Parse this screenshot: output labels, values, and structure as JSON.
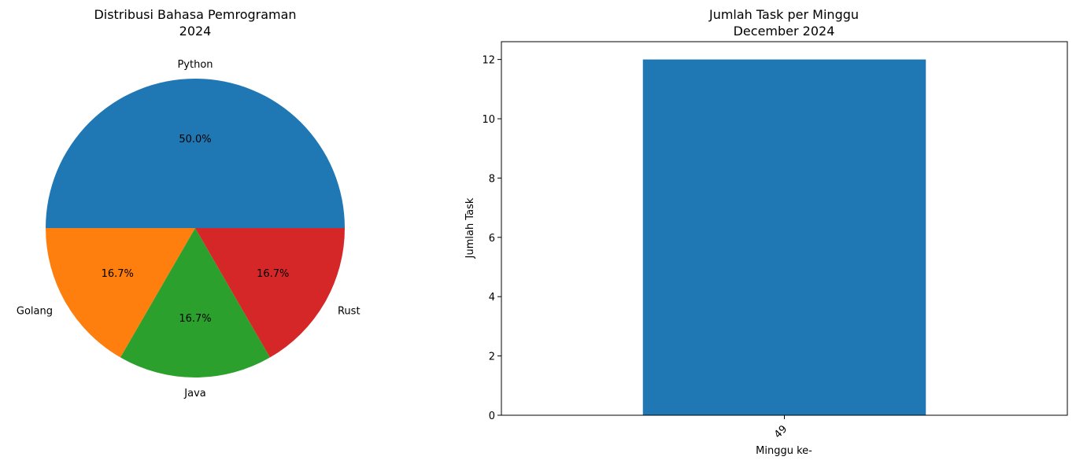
{
  "chart_data": [
    {
      "type": "pie",
      "title": "Distribusi Bahasa Pemrograman",
      "subtitle": "2024",
      "categories": [
        "Python",
        "Golang",
        "Java",
        "Rust"
      ],
      "values": [
        3,
        1,
        1,
        1
      ],
      "percent_labels": [
        "50.0%",
        "16.7%",
        "16.7%",
        "16.7%"
      ],
      "colors": [
        "#1f77b4",
        "#ff7f0e",
        "#2ca02c",
        "#d62728"
      ]
    },
    {
      "type": "bar",
      "title": "Jumlah Task per Minggu",
      "subtitle": "December 2024",
      "categories": [
        "49"
      ],
      "values": [
        12
      ],
      "xlabel": "Minggu ke-",
      "ylabel": "Jumlah Task",
      "ylim": [
        0,
        12.6
      ],
      "yticks": [
        0,
        2,
        4,
        6,
        8,
        10,
        12
      ],
      "color": "#1f77b4"
    }
  ]
}
